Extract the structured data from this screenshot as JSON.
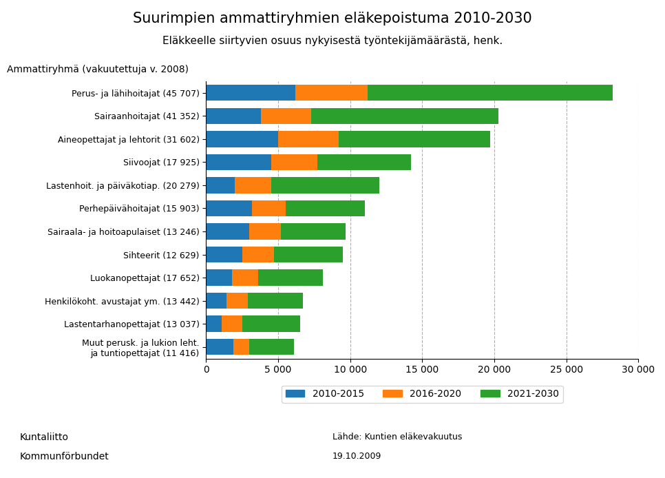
{
  "chart_data": {
    "type": "bar",
    "orientation": "horizontal",
    "stacked": true,
    "title": "Suurimpien ammattiryhmien eläkepoistuma 2010-2030",
    "subtitle": "Eläkkeelle siirtyvien osuus nykyisestä työntekijämäärästä, henk.",
    "y_label": "Ammattiryhmä (vakuutettuja v. 2008)",
    "categories": [
      "Perus- ja lähihoitajat (45 707)",
      "Sairaanhoitajat (41 352)",
      "Aineopettajat ja lehtorit (31 602)",
      "Siivoojat (17 925)",
      "Lastenhoit. ja päiväkotiap. (20 279)",
      "Perhepäivähoitajat (15 903)",
      "Sairaala- ja hoitoapulaiset (13 246)",
      "Sihteerit (12 629)",
      "Luokanopettajat (17 652)",
      "Henkilökoht. avustajat ym. (13 442)",
      "Lastentarhanopettajat (13 037)",
      "Muut perusk. ja lukion leht.\nja tuntiopettajat (11 416)"
    ],
    "series": [
      {
        "name": "2010-2015",
        "values": [
          6200,
          3800,
          5000,
          4500,
          2000,
          3200,
          3000,
          2500,
          1800,
          1400,
          1100,
          1900
        ]
      },
      {
        "name": "2016-2020",
        "values": [
          5000,
          3500,
          4200,
          3200,
          2500,
          2300,
          2200,
          2200,
          1800,
          1500,
          1400,
          1100
        ]
      },
      {
        "name": "2021-2030",
        "values": [
          17000,
          13000,
          10500,
          6500,
          7500,
          5500,
          4500,
          4800,
          4500,
          3800,
          4000,
          3100
        ]
      }
    ],
    "xlim": [
      0,
      30000
    ],
    "xticks": [
      0,
      {
        "value": 5000,
        "label": "5 000"
      },
      {
        "value": 10000,
        "label": "10 000"
      },
      {
        "value": 15000,
        "label": "15 000"
      },
      {
        "value": 20000,
        "label": "20 000"
      },
      {
        "value": 25000,
        "label": "25 000"
      },
      {
        "value": 30000,
        "label": "30 000"
      }
    ],
    "grid": true,
    "legend": "upper center",
    "annotations": [
      "Lähde: Kuntien eläkevakuutus",
      "19.10.2009",
      "Kuntaliitto",
      "Kommunförbundet"
    ]
  }
}
